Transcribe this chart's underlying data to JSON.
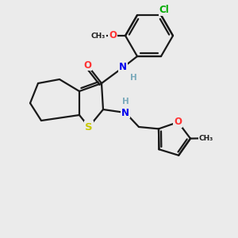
{
  "background_color": "#ebebeb",
  "bond_color": "#1a1a1a",
  "bond_width": 1.6,
  "atom_colors": {
    "S": "#c8c800",
    "O": "#ff3333",
    "N": "#0000ee",
    "Cl": "#00aa00",
    "C": "#1a1a1a",
    "H": "#7aaabb"
  },
  "font_size": 8.5
}
